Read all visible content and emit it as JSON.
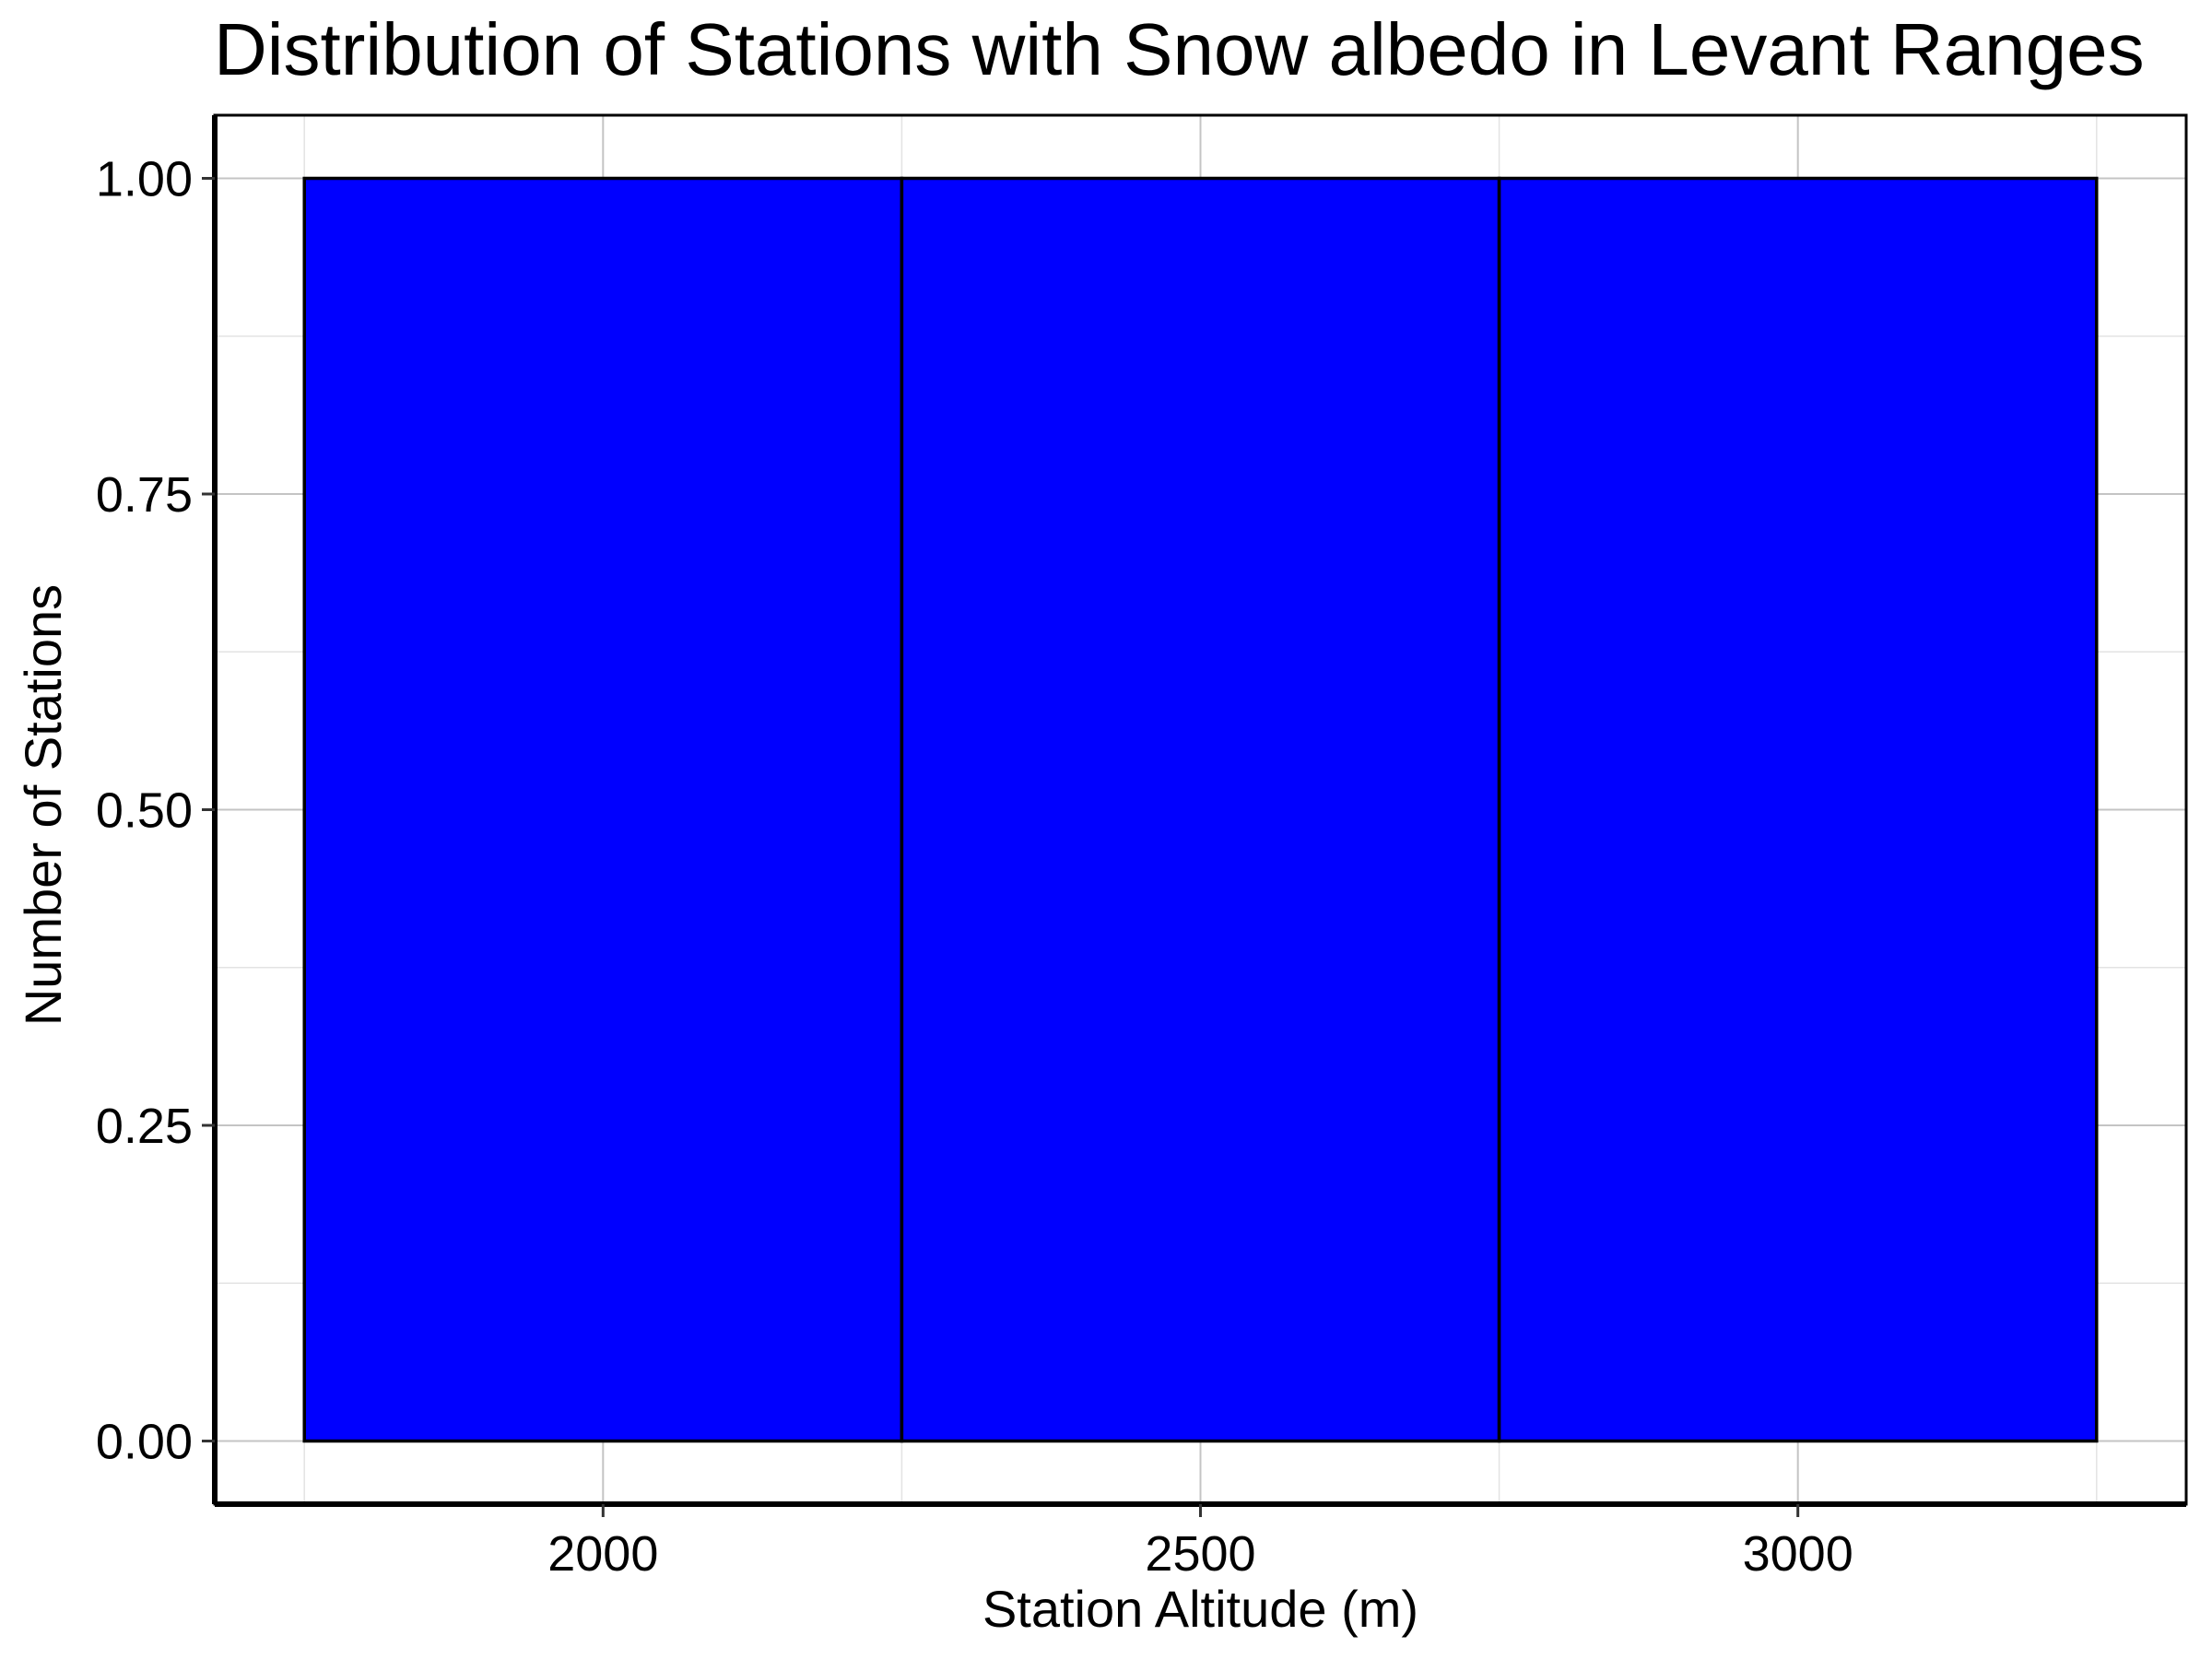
{
  "chart_data": {
    "type": "bar",
    "title": "Distribution of Stations with Snow albedo in Levant Ranges",
    "xlabel": "Station Altitude (m)",
    "ylabel": "Number of Stations",
    "bins": [
      {
        "x0": 1750,
        "x1": 2250,
        "value": 1
      },
      {
        "x0": 2250,
        "x1": 2750,
        "value": 1
      },
      {
        "x0": 2750,
        "x1": 3250,
        "value": 1
      }
    ],
    "xlim": [
      1675,
      3325
    ],
    "ylim": [
      -0.05,
      1.05
    ],
    "xticks": [
      2000,
      2500,
      3000
    ],
    "xtick_labels": [
      "2000",
      "2500",
      "3000"
    ],
    "yticks": [
      0,
      0.25,
      0.5,
      0.75,
      1.0
    ],
    "ytick_labels": [
      "0.00",
      "0.25",
      "0.50",
      "0.75",
      "1.00"
    ],
    "grid": true,
    "bar_color": "#0000ff",
    "edge_color": "#000000"
  }
}
